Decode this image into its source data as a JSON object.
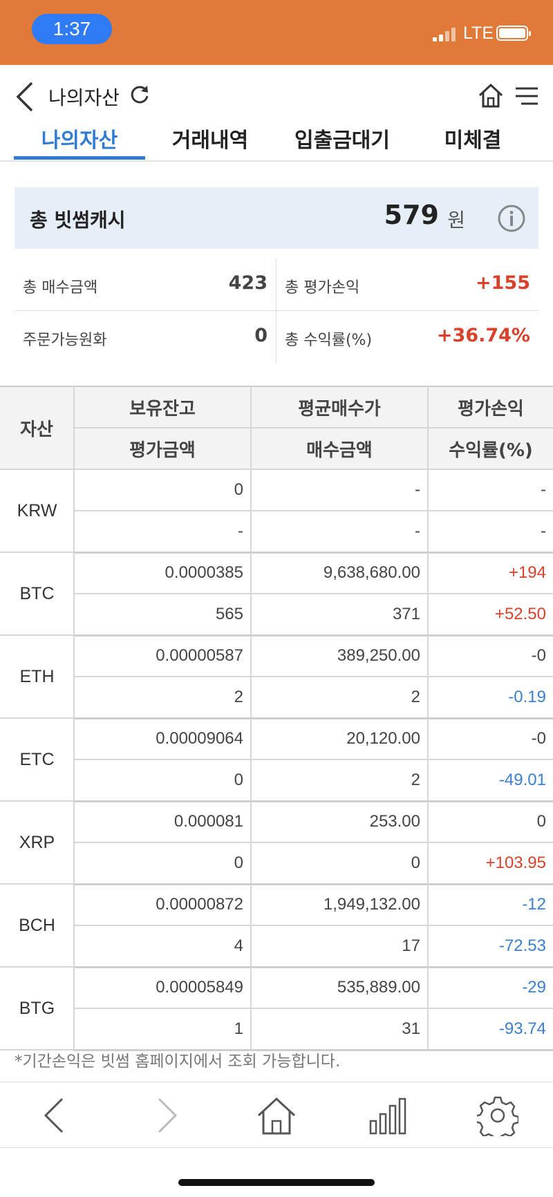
{
  "status_bar": {
    "time": "1:37",
    "network": "LTE"
  },
  "nav": {
    "title": "나의자산"
  },
  "tabs": [
    {
      "label": "나의자산",
      "active": true
    },
    {
      "label": "거래내역",
      "active": false
    },
    {
      "label": "입출금대기",
      "active": false
    },
    {
      "label": "미체결",
      "active": false
    }
  ],
  "cash": {
    "label": "총 빗썸캐시",
    "value": "579",
    "unit": "원"
  },
  "summary": {
    "total_buy_label": "총 매수금액",
    "total_buy_value": "423",
    "total_pl_label": "총 평가손익",
    "total_pl_value": "+155",
    "orderable_label": "주문가능원화",
    "orderable_value": "0",
    "return_label": "총 수익률(%)",
    "return_value": "+36.74%"
  },
  "table": {
    "headers": {
      "asset": "자산",
      "holding": "보유잔고",
      "avg_price": "평균매수가",
      "pl": "평가손익",
      "eval_amount": "평가금액",
      "buy_amount": "매수금액",
      "return_rate": "수익률(%)"
    },
    "rows": [
      {
        "asset": "KRW",
        "holding": "0",
        "avg_price": "-",
        "pl": "-",
        "eval_amount": "-",
        "buy_amount": "-",
        "return_rate": "-",
        "pl_color": "",
        "rate_color": ""
      },
      {
        "asset": "BTC",
        "holding": "0.0000385",
        "avg_price": "9,638,680.00",
        "pl": "+194",
        "eval_amount": "565",
        "buy_amount": "371",
        "return_rate": "+52.50",
        "pl_color": "red",
        "rate_color": "red"
      },
      {
        "asset": "ETH",
        "holding": "0.00000587",
        "avg_price": "389,250.00",
        "pl": "-0",
        "eval_amount": "2",
        "buy_amount": "2",
        "return_rate": "-0.19",
        "pl_color": "",
        "rate_color": "blue"
      },
      {
        "asset": "ETC",
        "holding": "0.00009064",
        "avg_price": "20,120.00",
        "pl": "-0",
        "eval_amount": "0",
        "buy_amount": "2",
        "return_rate": "-49.01",
        "pl_color": "",
        "rate_color": "blue"
      },
      {
        "asset": "XRP",
        "holding": "0.000081",
        "avg_price": "253.00",
        "pl": "0",
        "eval_amount": "0",
        "buy_amount": "0",
        "return_rate": "+103.95",
        "pl_color": "",
        "rate_color": "red"
      },
      {
        "asset": "BCH",
        "holding": "0.00000872",
        "avg_price": "1,949,132.00",
        "pl": "-12",
        "eval_amount": "4",
        "buy_amount": "17",
        "return_rate": "-72.53",
        "pl_color": "blue",
        "rate_color": "blue"
      },
      {
        "asset": "BTG",
        "holding": "0.00005849",
        "avg_price": "535,889.00",
        "pl": "-29",
        "eval_amount": "1",
        "buy_amount": "31",
        "return_rate": "-93.74",
        "pl_color": "blue",
        "rate_color": "blue"
      }
    ]
  },
  "footnote": "*기간손익은 빗썸 홈페이지에서 조회 가능합니다.",
  "bottom_nav": [
    "back-icon",
    "forward-icon",
    "home-icon",
    "chart-icon",
    "settings-icon"
  ],
  "colors": {
    "status_bar": "#e17a39",
    "accent": "#2f7bd6",
    "positive": "#d8422b",
    "negative": "#3a7fd0"
  }
}
